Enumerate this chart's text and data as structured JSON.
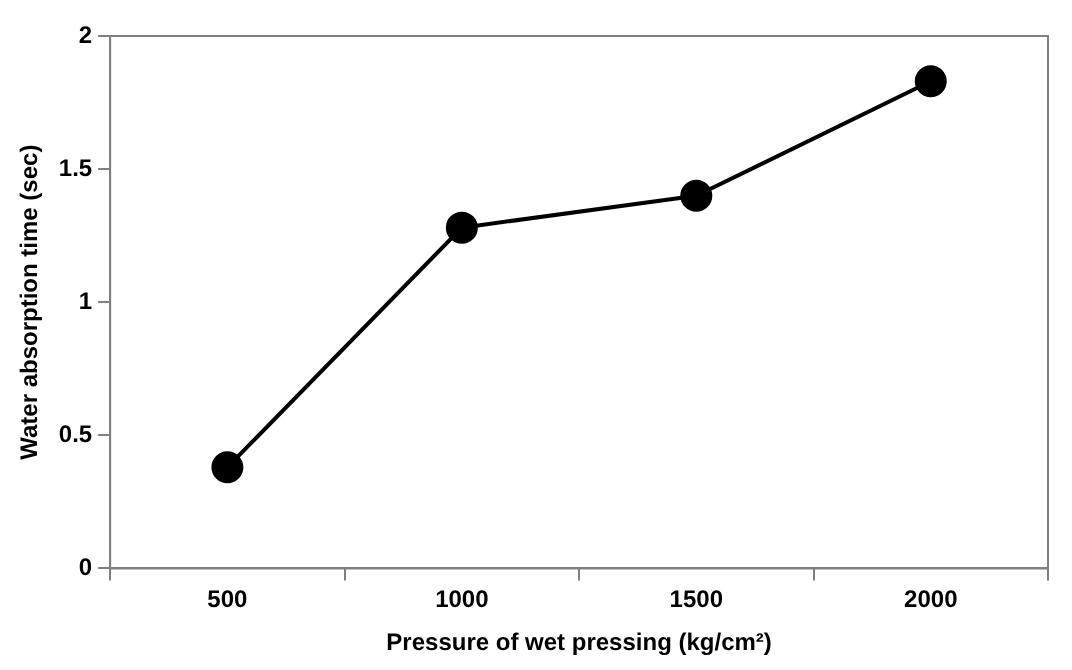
{
  "chart_data": {
    "type": "line",
    "xlabel": "Pressure of wet pressing (kg/cm²)",
    "ylabel": "Water absorption time (sec)",
    "categories": [
      "500",
      "1000",
      "1500",
      "2000"
    ],
    "series": [
      {
        "color": "#000000",
        "values": [
          0.38,
          1.28,
          1.4,
          1.83
        ]
      }
    ],
    "ylim": [
      0,
      2
    ],
    "yticks": [
      0,
      0.5,
      1,
      1.5,
      2
    ],
    "grid": false,
    "legend": false,
    "marker": "circle",
    "line_style": "solid"
  }
}
